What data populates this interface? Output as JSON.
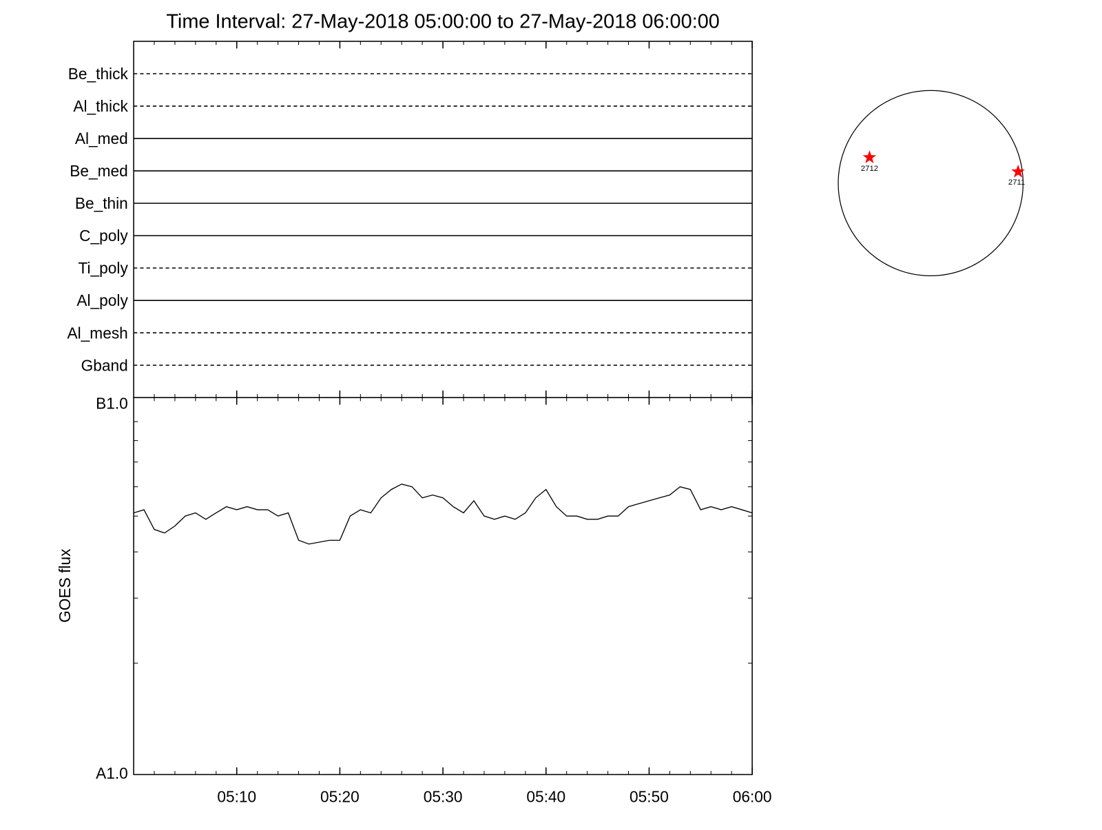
{
  "title": "Time Interval: 27-May-2018 05:00:00 to 27-May-2018 06:00:00",
  "chart_data": [
    {
      "type": "detectors",
      "categories": [
        "Be_thick",
        "Al_thick",
        "Al_med",
        "Be_med",
        "Be_thin",
        "C_poly",
        "Ti_poly",
        "Al_poly",
        "Al_mesh",
        "Gband"
      ],
      "dashed": [
        true,
        true,
        false,
        false,
        false,
        false,
        true,
        false,
        true,
        true
      ]
    },
    {
      "type": "line",
      "ylabel": "GOES flux",
      "log_y": true,
      "color": "#000000",
      "xlim": [
        "05:00",
        "06:00"
      ],
      "xticks": [
        "05:10",
        "05:20",
        "05:30",
        "05:40",
        "05:50",
        "06:00"
      ],
      "xminorticks": [
        "05:02",
        "05:04",
        "05:06",
        "05:08",
        "05:12",
        "05:14",
        "05:16",
        "05:18",
        "05:22",
        "05:24",
        "05:26",
        "05:28",
        "05:32",
        "05:34",
        "05:36",
        "05:38",
        "05:42",
        "05:44",
        "05:46",
        "05:48",
        "05:52",
        "05:54",
        "05:56",
        "05:58"
      ],
      "ylim": [
        1e-08,
        1e-07
      ],
      "yticks": [
        {
          "value": 1e-07,
          "label": "B1.0"
        },
        {
          "value": 1e-08,
          "label": "A1.0"
        }
      ],
      "yminorticks": [
        2e-08,
        3e-08,
        4e-08,
        5e-08,
        6e-08,
        7e-08,
        8e-08,
        9e-08
      ],
      "x": [
        "05:00",
        "05:01",
        "05:02",
        "05:03",
        "05:04",
        "05:05",
        "05:06",
        "05:07",
        "05:08",
        "05:09",
        "05:10",
        "05:11",
        "05:12",
        "05:13",
        "05:14",
        "05:15",
        "05:16",
        "05:17",
        "05:18",
        "05:19",
        "05:20",
        "05:21",
        "05:22",
        "05:23",
        "05:24",
        "05:25",
        "05:26",
        "05:27",
        "05:28",
        "05:29",
        "05:30",
        "05:31",
        "05:32",
        "05:33",
        "05:34",
        "05:35",
        "05:36",
        "05:37",
        "05:38",
        "05:39",
        "05:40",
        "05:41",
        "05:42",
        "05:43",
        "05:44",
        "05:45",
        "05:46",
        "05:47",
        "05:48",
        "05:49",
        "05:50",
        "05:51",
        "05:52",
        "05:53",
        "05:54",
        "05:55",
        "05:56",
        "05:57",
        "05:58",
        "05:59",
        "06:00"
      ],
      "values": [
        5.1e-08,
        5.2e-08,
        4.6e-08,
        4.5e-08,
        4.7e-08,
        5e-08,
        5.1e-08,
        4.9e-08,
        5.1e-08,
        5.3e-08,
        5.2e-08,
        5.3e-08,
        5.2e-08,
        5.2e-08,
        5e-08,
        5.1e-08,
        4.3e-08,
        4.2e-08,
        4.25e-08,
        4.3e-08,
        4.3e-08,
        5e-08,
        5.2e-08,
        5.1e-08,
        5.6e-08,
        5.9e-08,
        6.1e-08,
        6e-08,
        5.6e-08,
        5.7e-08,
        5.6e-08,
        5.3e-08,
        5.1e-08,
        5.5e-08,
        5e-08,
        4.9e-08,
        5e-08,
        4.9e-08,
        5.1e-08,
        5.6e-08,
        5.9e-08,
        5.3e-08,
        5e-08,
        5e-08,
        4.9e-08,
        4.9e-08,
        5e-08,
        5e-08,
        5.3e-08,
        5.4e-08,
        5.5e-08,
        5.6e-08,
        5.7e-08,
        6e-08,
        5.9e-08,
        5.2e-08,
        5.3e-08,
        5.2e-08,
        5.3e-08,
        5.2e-08,
        5.1e-08
      ]
    }
  ],
  "disk": {
    "regions": [
      {
        "label": "2712"
      },
      {
        "label": "2711"
      }
    ]
  }
}
